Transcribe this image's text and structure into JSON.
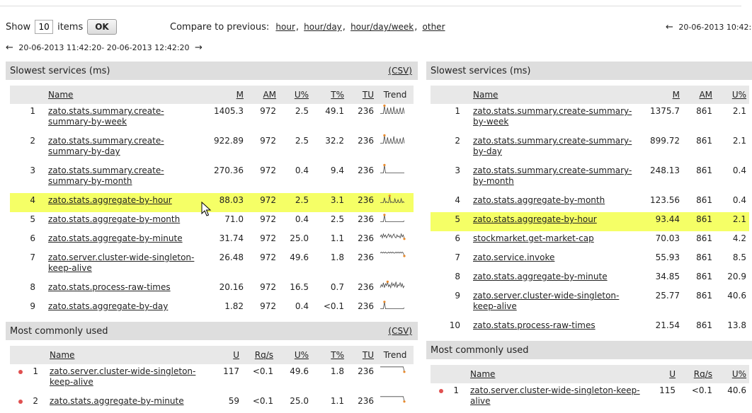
{
  "controls": {
    "show_label": "Show",
    "show_value": "10",
    "items_label": "items",
    "ok_label": "OK",
    "compare_label": "Compare to previous:",
    "compare_links": [
      "hour",
      "hour/day",
      "hour/day/week",
      "other"
    ]
  },
  "range_left": "20-06-2013 11:42:20- 20-06-2013 12:42:20",
  "range_right": "20-06-2013 10:42:",
  "left": {
    "slowest": {
      "title": "Slowest services (ms)",
      "csv": "(CSV)",
      "headers": {
        "name": "Name",
        "m": "M",
        "am": "AM",
        "up": "U%",
        "tp": "T%",
        "tu": "TU",
        "trend": "Trend"
      },
      "rows": [
        {
          "idx": "1",
          "name": "zato.stats.summary.create-summary-by-week",
          "m": "1405.3",
          "am": "972",
          "up": "2.5",
          "tp": "49.1",
          "tu": "236",
          "trend": [
            1,
            1,
            1,
            1,
            9,
            1,
            1,
            7,
            1,
            1,
            7,
            1,
            1,
            8,
            1,
            1,
            6,
            1,
            1,
            7,
            1,
            1,
            7,
            1
          ],
          "dot_at_end": false
        },
        {
          "idx": "2",
          "name": "zato.stats.summary.create-summary-by-day",
          "m": "922.89",
          "am": "972",
          "up": "2.5",
          "tp": "32.2",
          "tu": "236",
          "trend": [
            1,
            1,
            1,
            1,
            9,
            1,
            1,
            7,
            1,
            1,
            6,
            1,
            1,
            8,
            1,
            1,
            6,
            1,
            1,
            6,
            1,
            1,
            7,
            1
          ],
          "dot_at_end": false
        },
        {
          "idx": "3",
          "name": "zato.stats.summary.create-summary-by-month",
          "m": "270.36",
          "am": "972",
          "up": "0.4",
          "tp": "9.4",
          "tu": "236",
          "trend": [
            1,
            1,
            1,
            1,
            9,
            1,
            1,
            1,
            1,
            1,
            1,
            1,
            1,
            1,
            1,
            1,
            1,
            1,
            1,
            1,
            1,
            1,
            1,
            1
          ],
          "dot_at_end": false
        },
        {
          "idx": "4",
          "name": "zato.stats.aggregate-by-hour",
          "m": "88.03",
          "am": "972",
          "up": "2.5",
          "tp": "3.1",
          "tu": "236",
          "trend": [
            1,
            1,
            1,
            1,
            6,
            1,
            2,
            1,
            1,
            8,
            1,
            2,
            1,
            1,
            5,
            1,
            1,
            4,
            1,
            1,
            5,
            1,
            2,
            1
          ],
          "dot_at_end": false,
          "highlight": true
        },
        {
          "idx": "5",
          "name": "zato.stats.aggregate-by-month",
          "m": "71.0",
          "am": "972",
          "up": "0.4",
          "tp": "2.5",
          "tu": "236",
          "trend": [
            1,
            1,
            1,
            1,
            8,
            1,
            1,
            1,
            1,
            1,
            1,
            1,
            1,
            1,
            1,
            1,
            1,
            1,
            1,
            1,
            1,
            1,
            1,
            2
          ],
          "dot_at_end": false
        },
        {
          "idx": "6",
          "name": "zato.stats.aggregate-by-minute",
          "m": "31.74",
          "am": "972",
          "up": "25.0",
          "tp": "1.1",
          "tu": "236",
          "trend": [
            5,
            7,
            4,
            8,
            5,
            7,
            4,
            6,
            8,
            5,
            7,
            4,
            6,
            8,
            5,
            4,
            7,
            5,
            6,
            4,
            8,
            5,
            7,
            3
          ],
          "dot_at_end": true
        },
        {
          "idx": "7",
          "name": "zato.server.cluster-wide-singleton-keep-alive",
          "m": "26.48",
          "am": "972",
          "up": "49.6",
          "tp": "1.8",
          "tu": "236",
          "trend": [
            8,
            9,
            8,
            9,
            8,
            9,
            8,
            8,
            9,
            8,
            9,
            8,
            9,
            8,
            8,
            9,
            8,
            9,
            8,
            9,
            8,
            9,
            8,
            5
          ],
          "dot_at_end": true
        },
        {
          "idx": "8",
          "name": "zato.stats.process-raw-times",
          "m": "20.16",
          "am": "972",
          "up": "16.5",
          "tp": "0.7",
          "tu": "236",
          "trend": [
            3,
            6,
            4,
            8,
            3,
            7,
            5,
            9,
            4,
            6,
            3,
            8,
            5,
            7,
            4,
            9,
            3,
            6,
            5,
            8,
            4,
            7,
            3,
            5
          ],
          "dot_at_end": false
        },
        {
          "idx": "9",
          "name": "zato.stats.aggregate-by-day",
          "m": "1.82",
          "am": "972",
          "up": "0.4",
          "tp": "<0.1",
          "tu": "236",
          "trend": [
            1,
            1,
            1,
            1,
            8,
            1,
            1,
            1,
            1,
            1,
            1,
            1,
            1,
            1,
            1,
            1,
            1,
            1,
            1,
            1,
            1,
            1,
            1,
            2
          ],
          "dot_at_end": false
        }
      ]
    },
    "common": {
      "title": "Most commonly used",
      "csv": "(CSV)",
      "headers": {
        "name": "Name",
        "u": "U",
        "rqs": "Rq/s",
        "up": "U%",
        "tp": "T%",
        "tu": "TU",
        "trend": "Trend"
      },
      "rows": [
        {
          "idx": "1",
          "name": "zato.server.cluster-wide-singleton-keep-alive",
          "u": "117",
          "rqs": "<0.1",
          "up": "49.6",
          "tp": "1.8",
          "tu": "236",
          "trend": [
            8,
            8,
            8,
            8,
            8,
            8,
            8,
            8,
            8,
            8,
            8,
            8,
            8,
            8,
            8,
            8,
            8,
            8,
            8,
            8,
            8,
            8,
            8,
            3
          ],
          "dot_at_end": true
        },
        {
          "idx": "2",
          "name": "zato.stats.aggregate-by-minute",
          "u": "59",
          "rqs": "<0.1",
          "up": "25.0",
          "tp": "1.1",
          "tu": "236",
          "trend": [
            8,
            8,
            8,
            8,
            8,
            8,
            8,
            8,
            8,
            8,
            8,
            8,
            8,
            8,
            8,
            8,
            8,
            8,
            8,
            8,
            8,
            8,
            8,
            3
          ],
          "dot_at_end": true
        }
      ]
    }
  },
  "right": {
    "slowest": {
      "title": "Slowest services (ms)",
      "headers": {
        "name": "Name",
        "m": "M",
        "am": "AM",
        "up": "U%"
      },
      "rows": [
        {
          "idx": "1",
          "name": "zato.stats.summary.create-summary-by-week",
          "m": "1375.7",
          "am": "861",
          "up": "2.1"
        },
        {
          "idx": "2",
          "name": "zato.stats.summary.create-summary-by-day",
          "m": "899.72",
          "am": "861",
          "up": "2.1"
        },
        {
          "idx": "3",
          "name": "zato.stats.summary.create-summary-by-month",
          "m": "248.13",
          "am": "861",
          "up": "0.4"
        },
        {
          "idx": "4",
          "name": "zato.stats.aggregate-by-month",
          "m": "123.56",
          "am": "861",
          "up": "0.4"
        },
        {
          "idx": "5",
          "name": "zato.stats.aggregate-by-hour",
          "m": "93.44",
          "am": "861",
          "up": "2.1",
          "highlight": true
        },
        {
          "idx": "6",
          "name": "stockmarket.get-market-cap",
          "m": "70.03",
          "am": "861",
          "up": "4.2"
        },
        {
          "idx": "7",
          "name": "zato.service.invoke",
          "m": "55.93",
          "am": "861",
          "up": "8.5"
        },
        {
          "idx": "8",
          "name": "zato.stats.aggregate-by-minute",
          "m": "34.85",
          "am": "861",
          "up": "20.9"
        },
        {
          "idx": "9",
          "name": "zato.server.cluster-wide-singleton-keep-alive",
          "m": "25.77",
          "am": "861",
          "up": "40.6"
        },
        {
          "idx": "10",
          "name": "zato.stats.process-raw-times",
          "m": "21.54",
          "am": "861",
          "up": "13.8"
        }
      ]
    },
    "common": {
      "title": "Most commonly used",
      "headers": {
        "name": "Name",
        "u": "U",
        "rqs": "Rq/s",
        "up": "U%"
      },
      "rows": [
        {
          "idx": "1",
          "name": "zato.server.cluster-wide-singleton-keep-alive",
          "u": "115",
          "rqs": "<0.1",
          "up": "40.6"
        }
      ]
    }
  },
  "colors": {
    "highlight": "#f5ff66",
    "section_header": "#dedede",
    "table_header": "#e8e8e8",
    "spark_dot": "#e8892a",
    "bullet": "#e05050"
  }
}
